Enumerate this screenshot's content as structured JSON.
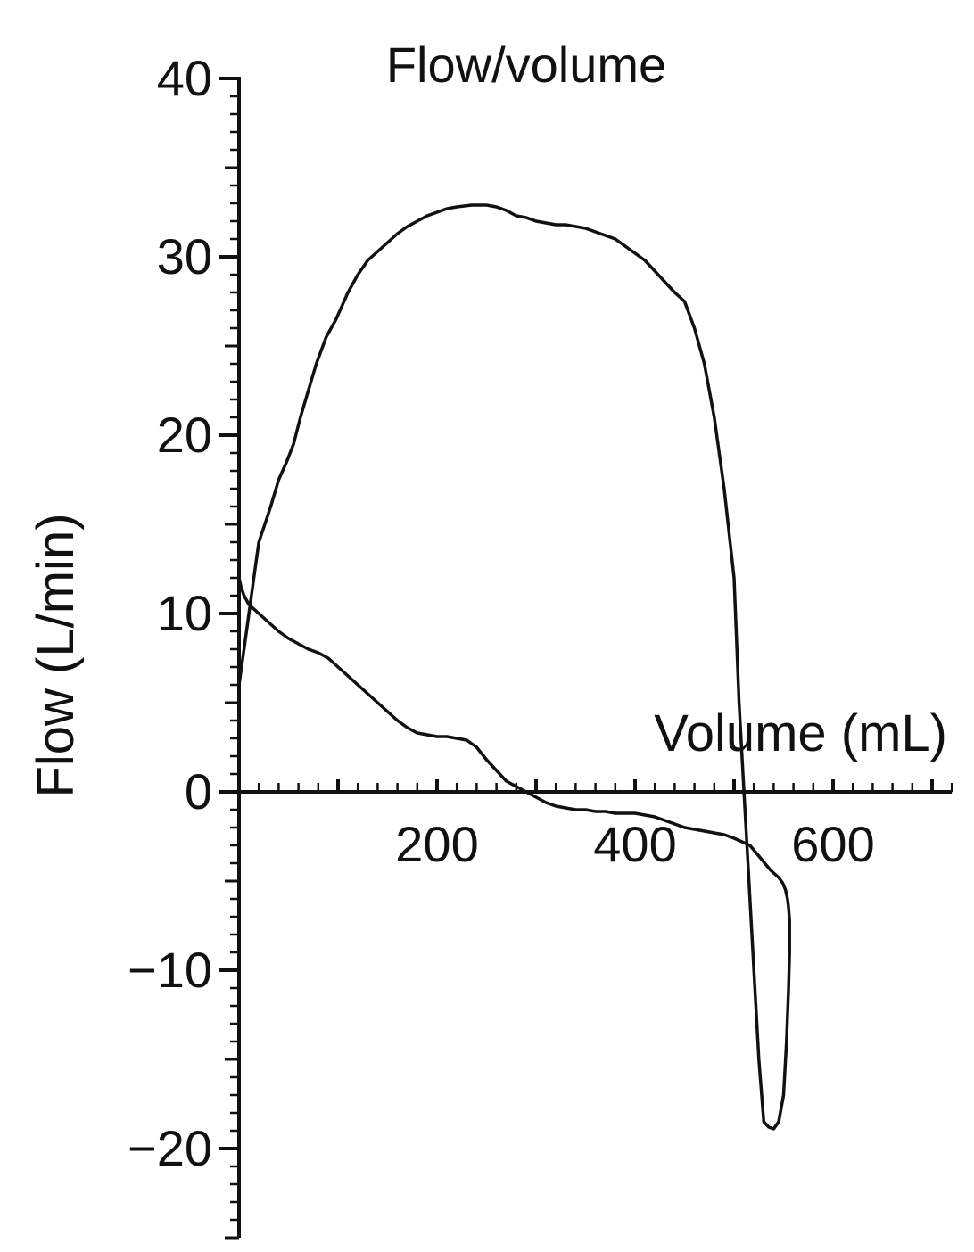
{
  "chart_data": {
    "type": "line",
    "title": "Flow/volume",
    "xlabel": "Volume (mL)",
    "ylabel": "Flow (L/min)",
    "xlim": [
      0,
      720
    ],
    "ylim": [
      -25,
      40
    ],
    "x_ticks": [
      {
        "value": 200,
        "label": "200"
      },
      {
        "value": 400,
        "label": "400"
      },
      {
        "value": 600,
        "label": "600"
      }
    ],
    "y_ticks": [
      {
        "value": 40,
        "label": "40"
      },
      {
        "value": 30,
        "label": "30"
      },
      {
        "value": 20,
        "label": "20"
      },
      {
        "value": 10,
        "label": "10"
      },
      {
        "value": 0,
        "label": "0"
      },
      {
        "value": -10,
        "label": "−10"
      },
      {
        "value": -20,
        "label": "−20"
      }
    ],
    "x_minor_step": 20,
    "y_minor_step": 1,
    "grid": false,
    "legend": "none",
    "line_color": "#111111",
    "series": [
      {
        "x": [
          0,
          5,
          10,
          15,
          20,
          26,
          32,
          40,
          48,
          55,
          62,
          70,
          78,
          88,
          98,
          110,
          120,
          130,
          140,
          150,
          160,
          170,
          180,
          190,
          200,
          210,
          220,
          235,
          250,
          260,
          270,
          280,
          290,
          300,
          310,
          320,
          330,
          340,
          350,
          360,
          370,
          380,
          390,
          400,
          410,
          420,
          430,
          440,
          450,
          460,
          470,
          480,
          490,
          500,
          505,
          510,
          515,
          520,
          525,
          530,
          535,
          540,
          545,
          550,
          553,
          555,
          556,
          556,
          556,
          555,
          554,
          552,
          549,
          545,
          541,
          537,
          534,
          531,
          528,
          525,
          522,
          519,
          516,
          512,
          508,
          504,
          500,
          495,
          490,
          480,
          470,
          460,
          450,
          440,
          430,
          420,
          410,
          400,
          390,
          380,
          370,
          360,
          350,
          340,
          330,
          320,
          310,
          300,
          290,
          280,
          270,
          260,
          250,
          240,
          230,
          220,
          210,
          200,
          190,
          180,
          170,
          160,
          150,
          140,
          130,
          120,
          110,
          100,
          90,
          80,
          70,
          60,
          50,
          40,
          30,
          20,
          10,
          5,
          2,
          0
        ],
        "y": [
          6,
          8,
          10,
          12,
          14,
          15,
          16,
          17.5,
          18.5,
          19.5,
          21,
          22.5,
          24,
          25.5,
          26.5,
          28,
          29,
          29.8,
          30.3,
          30.8,
          31.3,
          31.7,
          32,
          32.3,
          32.5,
          32.7,
          32.8,
          32.9,
          32.9,
          32.8,
          32.6,
          32.3,
          32.2,
          32,
          31.9,
          31.8,
          31.8,
          31.7,
          31.6,
          31.4,
          31.2,
          31,
          30.6,
          30.2,
          29.8,
          29.2,
          28.6,
          28,
          27.5,
          26,
          24,
          21,
          17,
          12,
          5,
          0,
          -5,
          -10,
          -15,
          -18.5,
          -18.8,
          -18.9,
          -18.5,
          -17,
          -14,
          -11,
          -9,
          -8,
          -7.2,
          -6.5,
          -6,
          -5.5,
          -5.1,
          -4.8,
          -4.6,
          -4.4,
          -4.2,
          -4,
          -3.8,
          -3.6,
          -3.4,
          -3.2,
          -3,
          -2.9,
          -2.8,
          -2.7,
          -2.6,
          -2.5,
          -2.4,
          -2.3,
          -2.2,
          -2.1,
          -2,
          -1.8,
          -1.6,
          -1.4,
          -1.3,
          -1.2,
          -1.2,
          -1.2,
          -1.1,
          -1.1,
          -1,
          -1,
          -0.9,
          -0.8,
          -0.6,
          -0.3,
          0,
          0.3,
          0.6,
          1.2,
          1.8,
          2.5,
          2.9,
          3,
          3.1,
          3.1,
          3.2,
          3.3,
          3.6,
          4,
          4.5,
          5,
          5.5,
          6,
          6.5,
          7,
          7.5,
          7.8,
          8,
          8.3,
          8.6,
          9,
          9.5,
          10,
          10.5,
          11,
          11.5,
          12
        ],
        "name": ""
      }
    ]
  }
}
